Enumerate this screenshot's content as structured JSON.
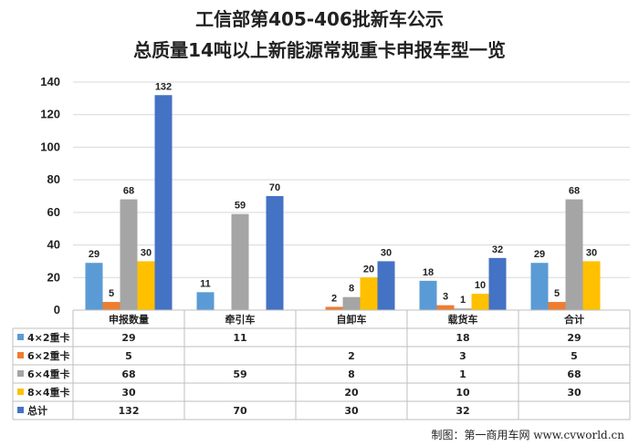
{
  "title": {
    "line1": "工信部第405-406批新车公示",
    "line2": "总质量14吨以上新能源常规重卡申报车型一览"
  },
  "credit": "制图：第一商用车网 www.cvworld.cn",
  "chart_data": {
    "type": "bar",
    "categories": [
      "申报数量",
      "牵引车",
      "自卸车",
      "载货车",
      "合计"
    ],
    "series": [
      {
        "name": "4×2重卡",
        "color": "#5b9bd5",
        "values": [
          29,
          11,
          null,
          18,
          29
        ]
      },
      {
        "name": "6×2重卡",
        "color": "#ed7d31",
        "values": [
          5,
          null,
          2,
          3,
          5
        ]
      },
      {
        "name": "6×4重卡",
        "color": "#a5a5a5",
        "values": [
          68,
          59,
          8,
          1,
          68
        ]
      },
      {
        "name": "8×4重卡",
        "color": "#ffc000",
        "values": [
          30,
          null,
          20,
          10,
          30
        ]
      },
      {
        "name": "总计",
        "color": "#4472c4",
        "values": [
          132,
          70,
          30,
          32,
          null
        ]
      }
    ],
    "ylim": [
      0,
      140
    ],
    "yticks": [
      0,
      20,
      40,
      60,
      80,
      100,
      120,
      140
    ],
    "grid": true,
    "legend": "data table below chart"
  }
}
